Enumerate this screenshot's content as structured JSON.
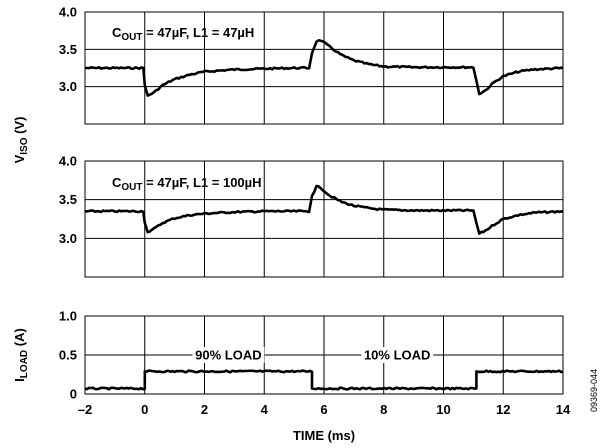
{
  "chart_data": [
    {
      "type": "line",
      "annotation": {
        "prefix": "C",
        "sub": "OUT",
        "suffix": " = 47µF, L1 = 47µH"
      },
      "ylim": [
        2.5,
        4.0
      ],
      "yticks": [
        "4.0",
        "3.5",
        "3.0"
      ],
      "yticks_values": [
        4.0,
        3.5,
        3.0
      ],
      "grid": true,
      "series": [
        {
          "x": [
            -2,
            -0.05,
            0,
            0.1,
            0.3,
            0.6,
            1.0,
            1.5,
            2.0,
            3.0,
            4.0,
            5.0,
            5.5,
            5.6,
            5.75,
            5.9,
            6.2,
            6.6,
            7.0,
            7.5,
            8.0,
            9.0,
            10.0,
            11.0,
            11.1,
            11.2,
            11.4,
            11.7,
            12.0,
            12.5,
            13.0,
            14.0
          ],
          "y": [
            3.25,
            3.25,
            3.02,
            2.88,
            2.92,
            3.02,
            3.1,
            3.16,
            3.2,
            3.23,
            3.24,
            3.25,
            3.25,
            3.45,
            3.61,
            3.62,
            3.53,
            3.42,
            3.35,
            3.3,
            3.27,
            3.26,
            3.26,
            3.26,
            3.08,
            2.9,
            2.95,
            3.06,
            3.14,
            3.2,
            3.23,
            3.25
          ]
        }
      ]
    },
    {
      "type": "line",
      "annotation": {
        "prefix": "C",
        "sub": "OUT",
        "suffix": " = 47µF, L1 = 100µH"
      },
      "ylim": [
        2.5,
        4.0
      ],
      "yticks": [
        "4.0",
        "3.5",
        "3.0"
      ],
      "yticks_values": [
        4.0,
        3.5,
        3.0
      ],
      "grid": true,
      "series": [
        {
          "x": [
            -2,
            -0.05,
            0,
            0.1,
            0.3,
            0.6,
            1.0,
            1.5,
            2.0,
            3.0,
            4.0,
            5.0,
            5.5,
            5.6,
            5.75,
            5.9,
            6.2,
            6.6,
            7.0,
            7.5,
            8.0,
            9.0,
            10.0,
            11.0,
            11.1,
            11.2,
            11.4,
            11.7,
            12.0,
            12.5,
            13.0,
            14.0
          ],
          "y": [
            3.35,
            3.35,
            3.2,
            3.08,
            3.12,
            3.2,
            3.26,
            3.3,
            3.32,
            3.34,
            3.35,
            3.35,
            3.35,
            3.55,
            3.67,
            3.65,
            3.55,
            3.47,
            3.42,
            3.39,
            3.37,
            3.36,
            3.36,
            3.36,
            3.2,
            3.06,
            3.1,
            3.18,
            3.25,
            3.3,
            3.33,
            3.35
          ]
        }
      ]
    },
    {
      "type": "line",
      "ylim": [
        0,
        1.0
      ],
      "yticks": [
        "1.0",
        "0.5",
        "0"
      ],
      "yticks_values": [
        1.0,
        0.5,
        0.0
      ],
      "grid": true,
      "annotations": [
        {
          "text": "90% LOAD",
          "x": 2.8,
          "y": 0.5
        },
        {
          "text": "10% LOAD",
          "x": 8.45,
          "y": 0.5
        }
      ],
      "series": [
        {
          "x": [
            -2,
            0,
            0,
            5.6,
            5.6,
            11.1,
            11.1,
            14
          ],
          "y": [
            0.07,
            0.07,
            0.29,
            0.29,
            0.07,
            0.07,
            0.29,
            0.29
          ]
        }
      ]
    }
  ],
  "x_axis": {
    "xlim": [
      -2,
      14
    ],
    "ticks": [
      "–2",
      "0",
      "2",
      "4",
      "6",
      "8",
      "10",
      "12",
      "14"
    ],
    "tick_values": [
      -2,
      0,
      2,
      4,
      6,
      8,
      10,
      12,
      14
    ],
    "label": "TIME (ms)"
  },
  "ylabel_top": {
    "main": "V",
    "sub": "ISO",
    "suffix": " (V)"
  },
  "ylabel_bottom": {
    "main": "I",
    "sub": "LOAD",
    "suffix": " (A)"
  },
  "figure_id": "09369-044",
  "colors": {
    "trace": "#000000",
    "grid": "#000000",
    "background": "#ffffff"
  }
}
